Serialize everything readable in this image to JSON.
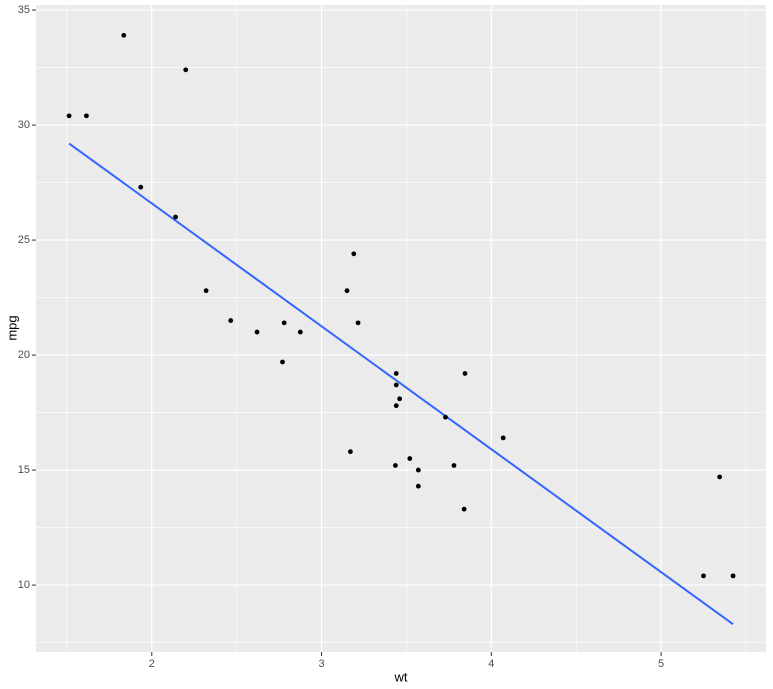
{
  "chart_data": {
    "type": "scatter",
    "x_label": "wt",
    "y_label": "mpg",
    "x": [
      2.62,
      2.875,
      2.32,
      3.215,
      3.44,
      3.46,
      3.57,
      3.19,
      3.15,
      3.44,
      3.44,
      4.07,
      3.73,
      3.78,
      5.25,
      5.424,
      5.345,
      2.2,
      1.615,
      1.835,
      2.465,
      3.52,
      3.435,
      3.84,
      3.845,
      1.935,
      2.14,
      1.513,
      3.17,
      2.77,
      3.57,
      2.78
    ],
    "values": [
      21.0,
      21.0,
      22.8,
      21.4,
      18.7,
      18.1,
      14.3,
      24.4,
      22.8,
      19.2,
      17.8,
      16.4,
      17.3,
      15.2,
      10.4,
      10.4,
      14.7,
      32.4,
      30.4,
      33.9,
      21.5,
      15.5,
      15.2,
      13.3,
      19.2,
      27.3,
      26.0,
      30.4,
      15.8,
      19.7,
      15.0,
      21.4
    ],
    "color": "#000000",
    "fit": {
      "x": [
        1.513,
        5.424
      ],
      "values": [
        29.198,
        8.297
      ],
      "color": "#3366ff"
    },
    "xlim": [
      1.318,
      5.618
    ],
    "ylim": [
      7.09,
      35.22
    ],
    "xticks": [
      2,
      3,
      4,
      5
    ],
    "yticks": [
      10,
      15,
      20,
      25,
      30,
      35
    ],
    "grid": true
  }
}
